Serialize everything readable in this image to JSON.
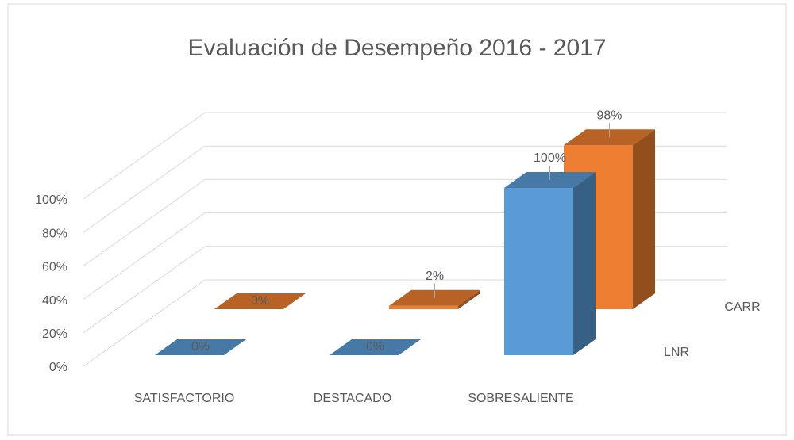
{
  "chart_data": {
    "type": "bar3d",
    "title": "Evaluación de Desempeño 2016 - 2017",
    "categories": [
      "SATISFACTORIO",
      "DESTACADO",
      "SOBRESALIENTE"
    ],
    "series": [
      {
        "name": "LNR",
        "color": "#5b9bd5",
        "values": [
          0,
          0,
          100
        ],
        "value_labels": [
          "0%",
          "0%",
          "100%"
        ]
      },
      {
        "name": "CARR",
        "color": "#ed7d31",
        "values": [
          0,
          2,
          98
        ],
        "value_labels": [
          "0%",
          "2%",
          "98%"
        ]
      }
    ],
    "ylim": [
      0,
      100
    ],
    "yticks": [
      {
        "value": 0,
        "label": "0%"
      },
      {
        "value": 20,
        "label": "20%"
      },
      {
        "value": 40,
        "label": "40%"
      },
      {
        "value": 60,
        "label": "60%"
      },
      {
        "value": 80,
        "label": "80%"
      },
      {
        "value": 100,
        "label": "100%"
      }
    ],
    "grid": true
  }
}
